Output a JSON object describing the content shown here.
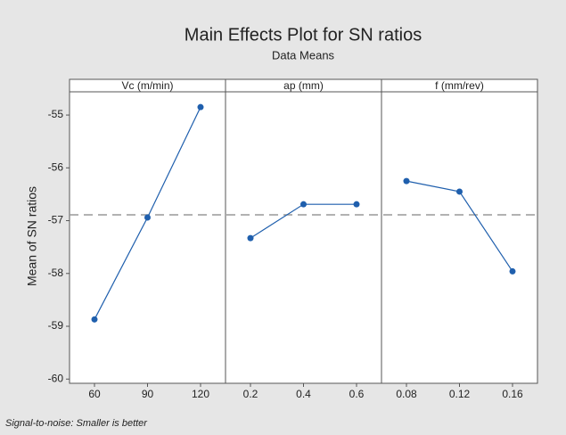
{
  "chart_data": {
    "type": "line",
    "title": "Main Effects Plot for SN ratios",
    "subtitle": "Data Means",
    "ylabel": "Mean of SN ratios",
    "footnote": "Signal-to-noise: Smaller is better",
    "ylim": [
      -60.08,
      -54.56
    ],
    "yticks": [
      -60,
      -59,
      -58,
      -57,
      -56,
      -55
    ],
    "mean": -56.89,
    "color": "#1f5fad",
    "panels": [
      {
        "title": "Vc (m/min)",
        "categories": [
          "60",
          "90",
          "120"
        ],
        "values": [
          -58.87,
          -56.94,
          -54.85
        ]
      },
      {
        "title": "ap (mm)",
        "categories": [
          "0.2",
          "0.4",
          "0.6"
        ],
        "values": [
          -57.33,
          -56.69,
          -56.69
        ]
      },
      {
        "title": "f (mm/rev)",
        "categories": [
          "0.08",
          "0.12",
          "0.16"
        ],
        "values": [
          -56.25,
          -56.45,
          -57.96
        ]
      }
    ]
  }
}
